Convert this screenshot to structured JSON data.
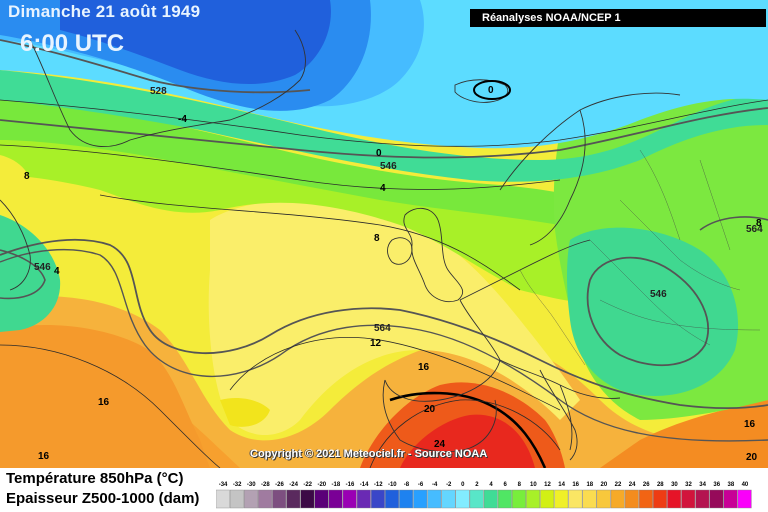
{
  "header": {
    "date": "Dimanche 21 août 1949",
    "time": "6:00 UTC",
    "source": "Réanalyses NOAA/NCEP 1"
  },
  "copyright": "Copyright © 2021 Meteociel.fr - Source NOAA",
  "legend": {
    "temp_label": "Température 850hPa (°C)",
    "thickness_label": "Epaisseur Z500-1000 (dam)",
    "scale_values": [
      "-34",
      "-32",
      "-30",
      "-28",
      "-26",
      "-24",
      "-22",
      "-20",
      "-18",
      "-16",
      "-14",
      "-12",
      "-10",
      "-8",
      "-6",
      "-4",
      "-2",
      "0",
      "2",
      "4",
      "6",
      "8",
      "10",
      "12",
      "14",
      "16",
      "18",
      "20",
      "22",
      "24",
      "26",
      "28",
      "30",
      "32",
      "34",
      "36",
      "38",
      "40"
    ],
    "scale_colors": [
      "#d9d9d9",
      "#c4c4c4",
      "#b3a1b3",
      "#a07ba0",
      "#7d4f80",
      "#5a2a5e",
      "#3c0a46",
      "#5a0078",
      "#7a0096",
      "#9a00b4",
      "#6a2ab4",
      "#3a46c8",
      "#2060dc",
      "#1e82f0",
      "#28a0ff",
      "#46bcff",
      "#64d6ff",
      "#82ecff",
      "#58e6c8",
      "#40dc96",
      "#50e664",
      "#78ee3c",
      "#a8f028",
      "#d2f014",
      "#f0f028",
      "#fae664",
      "#fadc50",
      "#f8c83c",
      "#f6aa28",
      "#f48c1e",
      "#f26414",
      "#ee3c14",
      "#e61428",
      "#d2143c",
      "#b41450",
      "#960a5a",
      "#c80096",
      "#fa00fa"
    ]
  },
  "map": {
    "temperature_labels": [
      "-4",
      "0",
      "4",
      "8",
      "8",
      "4",
      "8",
      "12",
      "16",
      "16",
      "16",
      "20",
      "24",
      "16",
      "20"
    ],
    "thickness_labels": [
      "528",
      "546",
      "546",
      "564",
      "546",
      "564"
    ],
    "closed_low_label": "0",
    "colors": {
      "ocean_deep": "#2e6ad8",
      "polar_cyan": "#5cdcff",
      "cold_green": "#40d880",
      "green": "#7ce840",
      "yellow": "#eef030",
      "orange": "#f4a030",
      "red": "#ee3c14"
    }
  }
}
